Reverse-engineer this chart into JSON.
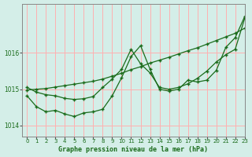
{
  "bg_color": "#d4eee8",
  "grid_color": "#ffb0b0",
  "line_color": "#1a6b1a",
  "title": "Graphe pression niveau de la mer (hPa)",
  "xlim": [
    -0.5,
    23
  ],
  "ylim": [
    1013.7,
    1017.35
  ],
  "yticks": [
    1014,
    1015,
    1016
  ],
  "xticks": [
    0,
    1,
    2,
    3,
    4,
    5,
    6,
    7,
    8,
    9,
    10,
    11,
    12,
    13,
    14,
    15,
    16,
    17,
    18,
    19,
    20,
    21,
    22,
    23
  ],
  "series1_x": [
    0,
    1,
    2,
    3,
    4,
    5,
    6,
    7,
    8,
    9,
    10,
    11,
    12,
    13,
    14,
    15,
    16,
    17,
    18,
    19,
    20,
    21,
    22,
    23
  ],
  "series1_y": [
    1015.05,
    1014.92,
    1014.85,
    1014.82,
    1014.75,
    1014.72,
    1014.74,
    1014.8,
    1015.05,
    1015.28,
    1015.55,
    1016.1,
    1015.7,
    1015.45,
    1015.05,
    1015.0,
    1015.05,
    1015.15,
    1015.3,
    1015.5,
    1015.75,
    1015.95,
    1016.1,
    1016.95
  ],
  "series2_x": [
    0,
    1,
    2,
    3,
    4,
    5,
    6,
    7,
    8,
    9,
    10,
    11,
    12,
    13,
    14,
    15,
    16,
    17,
    18,
    19,
    20,
    21,
    22,
    23
  ],
  "series2_y": [
    1014.82,
    1014.52,
    1014.38,
    1014.42,
    1014.32,
    1014.25,
    1014.35,
    1014.38,
    1014.45,
    1014.82,
    1015.32,
    1015.9,
    1016.2,
    1015.55,
    1015.0,
    1014.95,
    1015.0,
    1015.25,
    1015.2,
    1015.25,
    1015.52,
    1016.15,
    1016.42,
    1017.0
  ],
  "series3_x": [
    0,
    1,
    2,
    3,
    4,
    5,
    6,
    7,
    8,
    9,
    10,
    11,
    12,
    13,
    14,
    15,
    16,
    17,
    18,
    19,
    20,
    21,
    22,
    23
  ],
  "series3_y": [
    1014.98,
    1015.0,
    1015.02,
    1015.06,
    1015.1,
    1015.14,
    1015.18,
    1015.22,
    1015.28,
    1015.36,
    1015.44,
    1015.54,
    1015.62,
    1015.72,
    1015.8,
    1015.88,
    1015.97,
    1016.06,
    1016.14,
    1016.24,
    1016.34,
    1016.44,
    1016.54,
    1016.68
  ]
}
